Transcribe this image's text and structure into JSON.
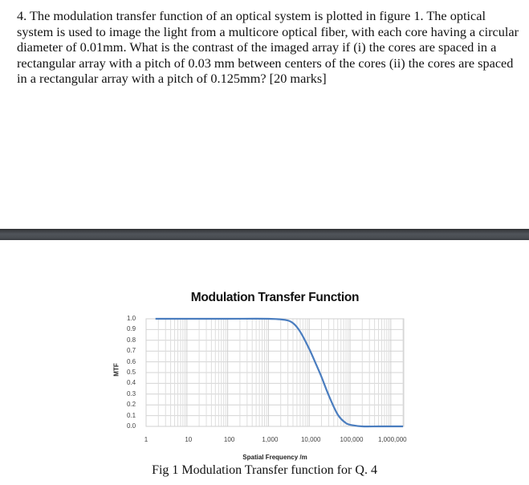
{
  "question": {
    "text": "4. The modulation transfer function of an optical system is plotted in figure 1.  The optical system is used to image the light from a multicore optical fiber, with each core having a circular diameter of 0.01mm.  What is the contrast of the imaged array if (i) the cores are spaced in a rectangular array with a pitch of 0.03 mm between centers of the cores (ii) the cores are spaced in a rectangular array with a pitch of 0.125mm?  [20 marks]"
  },
  "figure": {
    "caption": "Fig 1 Modulation Transfer function for Q. 4"
  },
  "chart_data": {
    "type": "line",
    "title": "Modulation Transfer Function",
    "xlabel": "Spatial Frequency /m",
    "ylabel": "MTF",
    "x_scale": "log",
    "xlim": [
      1,
      2000000
    ],
    "ylim": [
      0,
      1
    ],
    "x_tick_labels": [
      "1",
      "10",
      "100",
      "1,000",
      "10,000",
      "100,000",
      "1,000,000"
    ],
    "y_tick_labels": [
      "1.0",
      "0.9",
      "0.8",
      "0.7",
      "0.6",
      "0.5",
      "0.4",
      "0.3",
      "0.2",
      "0.1",
      "0.0"
    ],
    "grid": true,
    "legend": false,
    "series_color": "#4a7dbf",
    "series": [
      {
        "name": "MTF",
        "x": [
          1.7,
          10,
          100,
          1000,
          2500,
          4000,
          6000,
          10000,
          15000,
          20000,
          30000,
          50000,
          80000,
          120000,
          200000,
          500000,
          1000000,
          2000000
        ],
        "y": [
          1.0,
          1.0,
          1.0,
          1.0,
          0.99,
          0.96,
          0.88,
          0.72,
          0.57,
          0.46,
          0.29,
          0.11,
          0.03,
          0.01,
          0.0,
          0.0,
          0.0,
          0.0
        ]
      }
    ]
  }
}
